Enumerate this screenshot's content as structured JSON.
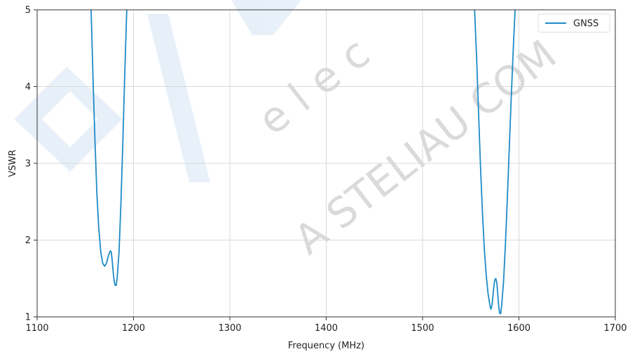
{
  "chart_data": {
    "type": "line",
    "title": "",
    "xlabel": "Frequency (MHz)",
    "ylabel": "VSWR",
    "xlim": [
      1100,
      1700
    ],
    "ylim": [
      1,
      5
    ],
    "x_ticks": [
      "1100",
      "1200",
      "1300",
      "1400",
      "1500",
      "1600",
      "1700"
    ],
    "y_ticks": [
      "1",
      "2",
      "3",
      "4",
      "5"
    ],
    "grid": true,
    "legend_position": "top-right",
    "series": [
      {
        "name": "GNSS",
        "color": "#1f8bc7",
        "points": [
          [
            1155,
            5.3
          ],
          [
            1156,
            5.0
          ],
          [
            1158,
            4.1
          ],
          [
            1160,
            3.3
          ],
          [
            1162,
            2.6
          ],
          [
            1164,
            2.15
          ],
          [
            1166,
            1.85
          ],
          [
            1168,
            1.7
          ],
          [
            1170,
            1.66
          ],
          [
            1172,
            1.7
          ],
          [
            1174,
            1.8
          ],
          [
            1176,
            1.86
          ],
          [
            1177,
            1.84
          ],
          [
            1178,
            1.72
          ],
          [
            1179,
            1.57
          ],
          [
            1180,
            1.46
          ],
          [
            1181,
            1.41
          ],
          [
            1182,
            1.41
          ],
          [
            1183,
            1.5
          ],
          [
            1185,
            1.85
          ],
          [
            1187,
            2.5
          ],
          [
            1189,
            3.3
          ],
          [
            1191,
            4.2
          ],
          [
            1193,
            5.0
          ],
          [
            1194,
            5.4
          ],
          [
            1553,
            5.3
          ],
          [
            1554,
            5.0
          ],
          [
            1556,
            4.4
          ],
          [
            1558,
            3.7
          ],
          [
            1560,
            3.0
          ],
          [
            1562,
            2.4
          ],
          [
            1564,
            1.9
          ],
          [
            1566,
            1.55
          ],
          [
            1568,
            1.3
          ],
          [
            1570,
            1.14
          ],
          [
            1571,
            1.1
          ],
          [
            1572,
            1.15
          ],
          [
            1573,
            1.27
          ],
          [
            1574,
            1.4
          ],
          [
            1575,
            1.48
          ],
          [
            1576,
            1.5
          ],
          [
            1577,
            1.45
          ],
          [
            1578,
            1.3
          ],
          [
            1579,
            1.14
          ],
          [
            1580,
            1.05
          ],
          [
            1581,
            1.04
          ],
          [
            1582,
            1.14
          ],
          [
            1584,
            1.45
          ],
          [
            1586,
            1.95
          ],
          [
            1588,
            2.55
          ],
          [
            1590,
            3.2
          ],
          [
            1592,
            3.85
          ],
          [
            1594,
            4.45
          ],
          [
            1596,
            5.0
          ],
          [
            1597,
            5.3
          ]
        ]
      }
    ]
  },
  "watermark": {
    "text_lines": [
      "e  l  e  c",
      "A STELIAU COM"
    ],
    "color": "#5b9bd5"
  }
}
